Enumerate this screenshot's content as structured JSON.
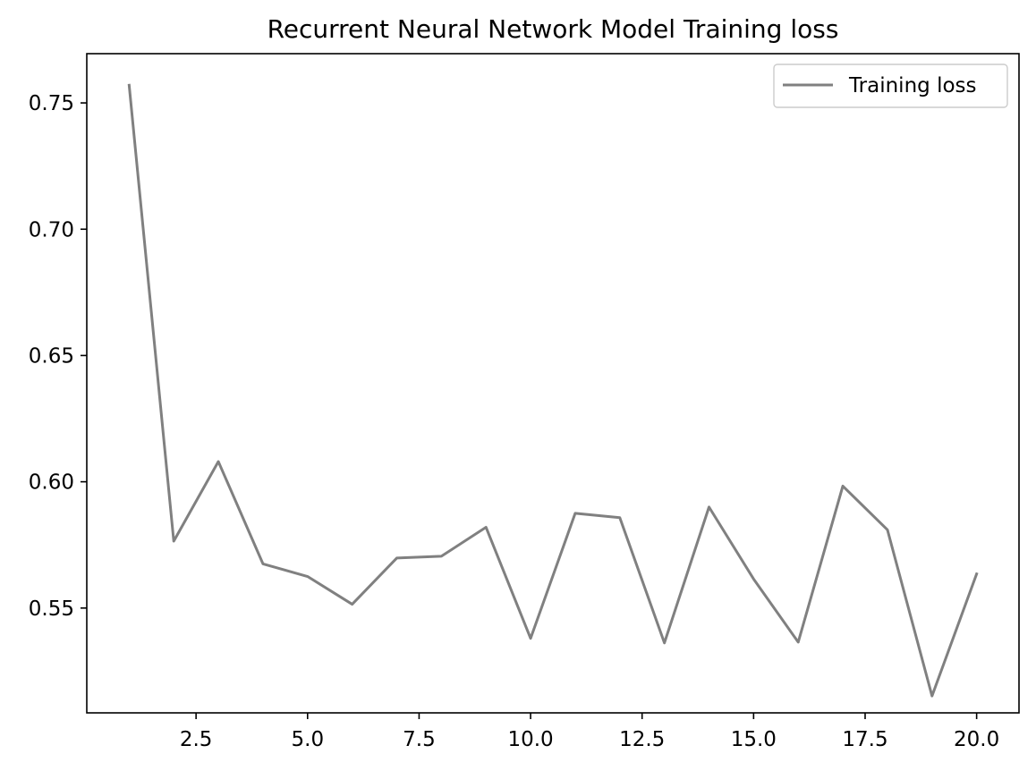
{
  "chart_data": {
    "type": "line",
    "title": "Recurrent Neural Network Model Training loss",
    "xlabel": "",
    "ylabel": "",
    "xlim": [
      0.05,
      20.95
    ],
    "ylim": [
      0.5085,
      0.7695
    ],
    "xticks": [
      2.5,
      5.0,
      7.5,
      10.0,
      12.5,
      15.0,
      17.5,
      20.0
    ],
    "xtick_labels": [
      "2.5",
      "5.0",
      "7.5",
      "10.0",
      "12.5",
      "15.0",
      "17.5",
      "20.0"
    ],
    "yticks": [
      0.55,
      0.6,
      0.65,
      0.7,
      0.75
    ],
    "ytick_labels": [
      "0.55",
      "0.60",
      "0.65",
      "0.70",
      "0.75"
    ],
    "grid": false,
    "legend_position": "top-right",
    "series": [
      {
        "name": "Training loss",
        "color": "#808080",
        "x": [
          1,
          2,
          3,
          4,
          5,
          6,
          7,
          8,
          9,
          10,
          11,
          12,
          13,
          14,
          15,
          16,
          17,
          18,
          19,
          20
        ],
        "values": [
          0.757,
          0.5765,
          0.608,
          0.5675,
          0.5625,
          0.5515,
          0.5698,
          0.5705,
          0.582,
          0.538,
          0.5875,
          0.5858,
          0.5362,
          0.59,
          0.5615,
          0.5365,
          0.5983,
          0.581,
          0.5152,
          0.5635
        ]
      }
    ]
  }
}
